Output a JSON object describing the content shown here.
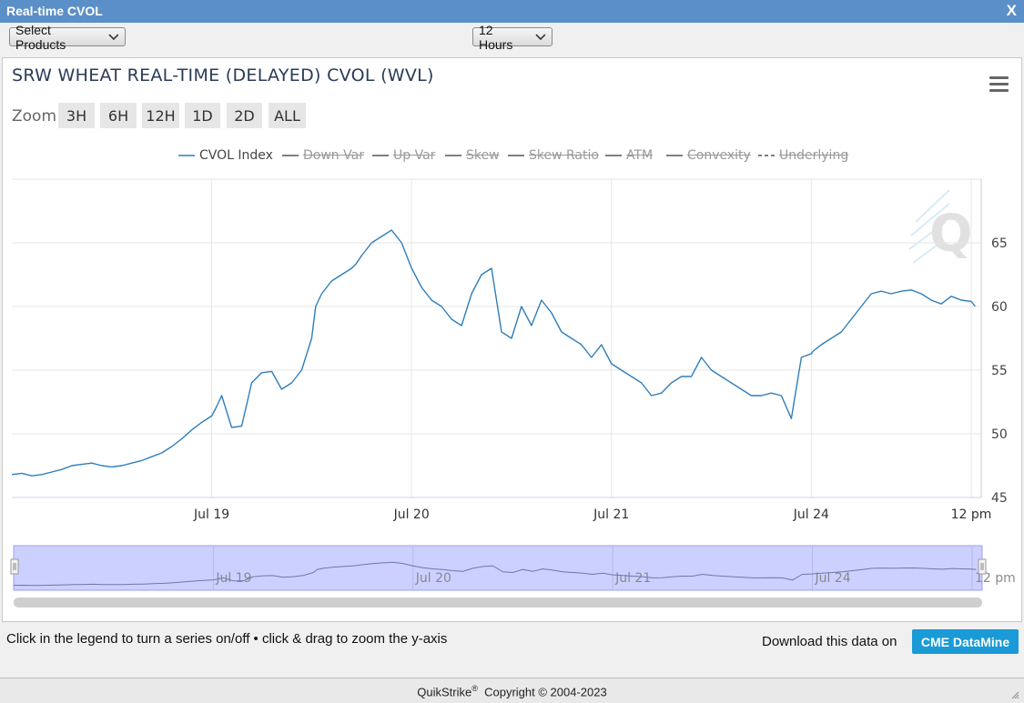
{
  "window": {
    "title": "Real-time CVOL",
    "close_label": "X"
  },
  "toolbar": {
    "products_label": "Select Products",
    "range_label": "12 Hours"
  },
  "chart_header": {
    "title": "SRW WHEAT REAL-TIME (DELAYED) CVOL (WVL)"
  },
  "zoom": {
    "label": "Zoom",
    "buttons": [
      "3H",
      "6H",
      "12H",
      "1D",
      "2D",
      "ALL"
    ]
  },
  "legend": [
    {
      "label": "CVOL Index",
      "active": true,
      "color": "#2f7ebc",
      "dash": false
    },
    {
      "label": "Down Var",
      "active": false,
      "color": "#555555",
      "dash": false
    },
    {
      "label": "Up Var",
      "active": false,
      "color": "#555555",
      "dash": false
    },
    {
      "label": "Skew",
      "active": false,
      "color": "#555555",
      "dash": false
    },
    {
      "label": "Skew Ratio",
      "active": false,
      "color": "#555555",
      "dash": false
    },
    {
      "label": "ATM",
      "active": false,
      "color": "#555555",
      "dash": false
    },
    {
      "label": "Convexity",
      "active": false,
      "color": "#555555",
      "dash": false
    },
    {
      "label": "Underlying",
      "active": false,
      "color": "#555555",
      "dash": true
    }
  ],
  "chart_data": {
    "type": "line",
    "series": [
      {
        "name": "CVOL Index",
        "color": "#2f7ebc",
        "x": [
          0.0,
          0.05,
          0.1,
          0.15,
          0.2,
          0.25,
          0.3,
          0.35,
          0.4,
          0.45,
          0.5,
          0.55,
          0.6,
          0.65,
          0.7,
          0.75,
          0.8,
          0.85,
          0.9,
          0.95,
          1.0,
          1.02,
          1.05,
          1.1,
          1.15,
          1.2,
          1.25,
          1.3,
          1.35,
          1.4,
          1.45,
          1.5,
          1.52,
          1.55,
          1.6,
          1.65,
          1.7,
          1.72,
          1.75,
          1.8,
          1.85,
          1.9,
          1.95,
          2.0,
          2.05,
          2.1,
          2.15,
          2.2,
          2.25,
          2.3,
          2.35,
          2.4,
          2.45,
          2.5,
          2.55,
          2.6,
          2.65,
          2.7,
          2.75,
          2.8,
          2.85,
          2.9,
          2.95,
          3.0,
          3.05,
          3.1,
          3.15,
          3.2,
          3.25,
          3.3,
          3.35,
          3.4,
          3.45,
          3.5,
          3.55,
          3.6,
          3.65,
          3.7,
          3.75,
          3.8,
          3.85,
          3.9,
          3.95,
          4.0,
          4.01,
          4.05,
          4.1,
          4.15,
          4.2,
          4.25,
          4.3,
          4.35,
          4.4,
          4.45,
          4.5,
          4.55,
          4.6,
          4.65,
          4.7,
          4.75,
          4.8,
          4.82
        ],
        "values": [
          46.8,
          46.9,
          46.7,
          46.8,
          47.0,
          47.2,
          47.5,
          47.6,
          47.7,
          47.5,
          47.4,
          47.5,
          47.7,
          47.9,
          48.2,
          48.5,
          49.0,
          49.6,
          50.3,
          50.9,
          51.4,
          52.0,
          53.0,
          50.5,
          50.6,
          54.0,
          54.8,
          54.9,
          53.5,
          54.0,
          55.0,
          57.5,
          60.0,
          61.0,
          62.0,
          62.5,
          63.0,
          63.3,
          64.0,
          65.0,
          65.5,
          66.0,
          65.0,
          63.0,
          61.5,
          60.5,
          60.0,
          59.0,
          58.5,
          61.0,
          62.5,
          63.0,
          58.0,
          57.5,
          60.0,
          58.5,
          60.5,
          59.5,
          58.0,
          57.5,
          57.0,
          56.0,
          57.0,
          55.5,
          55.0,
          54.5,
          54.0,
          53.0,
          53.2,
          54.0,
          54.5,
          54.5,
          56.0,
          55.0,
          54.5,
          54.0,
          53.5,
          53.0,
          53.0,
          53.2,
          53.0,
          51.2,
          56.0,
          56.3,
          56.5,
          57.0,
          57.5,
          58.0,
          59.0,
          60.0,
          61.0,
          61.2,
          61.0,
          61.2,
          61.3,
          61.0,
          60.5,
          60.2,
          60.8,
          60.5,
          60.4,
          60.0
        ],
        "ylim": [
          45,
          70
        ]
      }
    ],
    "x_ticks": [
      {
        "label": "Jul 19",
        "x": 1
      },
      {
        "label": "Jul 20",
        "x": 2
      },
      {
        "label": "Jul 21",
        "x": 3
      },
      {
        "label": "Jul 24",
        "x": 4
      },
      {
        "label": "12 pm",
        "x": 4.8
      }
    ],
    "y_ticks": [
      45,
      50,
      55,
      60,
      65
    ],
    "xlim": [
      0,
      4.85
    ],
    "ylim": [
      45,
      70
    ],
    "grid": true,
    "legend_position": "top-center"
  },
  "navigator": {
    "tick_labels": [
      "Jul 19",
      "Jul 20",
      "Jul 21",
      "Jul 24",
      "12 pm"
    ]
  },
  "footer": {
    "note": "Click in the legend to turn a series on/off • click & drag to zoom the y-axis",
    "download_label": "Download this data on",
    "download_button": "CME DataMine",
    "copyright_brand": "QuikStrike",
    "copyright_sup": "®",
    "copyright_text": "Copyright © 2004-2023"
  },
  "colors": {
    "titlebar": "#5b8fc7",
    "line": "#2f7ebc",
    "navigator_fill": "#ccd0ff",
    "datamine_button": "#1a9ad6"
  }
}
